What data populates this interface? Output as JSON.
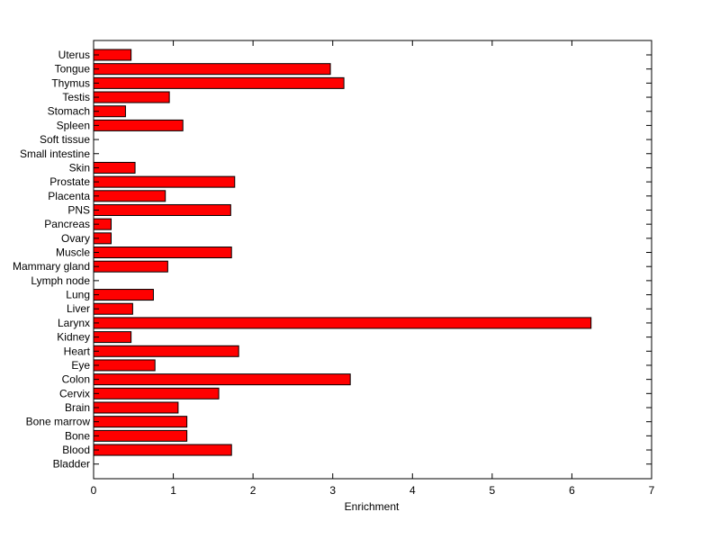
{
  "chart_data": {
    "type": "bar",
    "orientation": "horizontal",
    "title": "",
    "xlabel": "Enrichment",
    "ylabel": "",
    "xlim": [
      0,
      7
    ],
    "xticks": [
      0,
      1,
      2,
      3,
      4,
      5,
      6,
      7
    ],
    "grid": false,
    "bar_color": "#ff0000",
    "categories": [
      "Uterus",
      "Tongue",
      "Thymus",
      "Testis",
      "Stomach",
      "Spleen",
      "Soft tissue",
      "Small intestine",
      "Skin",
      "Prostate",
      "Placenta",
      "PNS",
      "Pancreas",
      "Ovary",
      "Muscle",
      "Mammary gland",
      "Lymph node",
      "Lung",
      "Liver",
      "Larynx",
      "Kidney",
      "Heart",
      "Eye",
      "Colon",
      "Cervix",
      "Brain",
      "Bone marrow",
      "Bone",
      "Blood",
      "Bladder"
    ],
    "values": [
      0.47,
      2.97,
      3.14,
      0.95,
      0.4,
      1.12,
      0,
      0,
      0.52,
      1.77,
      0.9,
      1.72,
      0.22,
      0.22,
      1.73,
      0.93,
      0,
      0.75,
      0.49,
      6.24,
      0.47,
      1.82,
      0.77,
      3.22,
      1.57,
      1.06,
      1.17,
      1.17,
      1.73,
      0
    ]
  }
}
